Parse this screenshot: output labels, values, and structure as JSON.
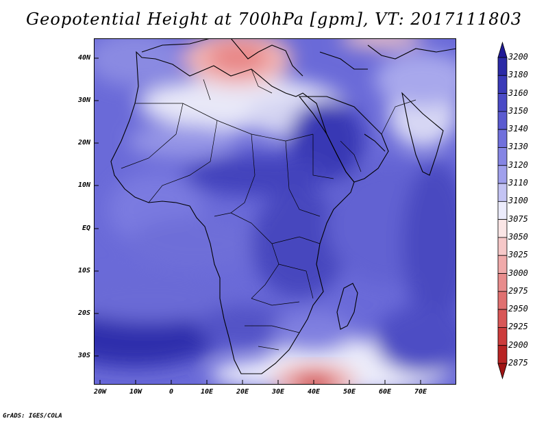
{
  "title": "Geopotential Height at 700hPa [gpm], VT: 2017111803",
  "credit": "GrADS: IGES/COLA",
  "map": {
    "lat_labels": [
      "40N",
      "30N",
      "20N",
      "10N",
      "EQ",
      "10S",
      "20S",
      "30S"
    ],
    "lon_labels": [
      "20W",
      "10W",
      "0",
      "10E",
      "20E",
      "30E",
      "40E",
      "50E",
      "60E",
      "70E"
    ],
    "lat_range": [
      -36,
      45
    ],
    "lon_range": [
      -23,
      79
    ]
  },
  "colorbar": {
    "levels": [
      "3200",
      "3180",
      "3160",
      "3150",
      "3140",
      "3130",
      "3120",
      "3110",
      "3100",
      "3075",
      "3050",
      "3025",
      "3000",
      "2975",
      "2950",
      "2925",
      "2900",
      "2875"
    ],
    "colors": [
      "#201a96",
      "#2b2aa6",
      "#3a3ab8",
      "#4a4ac6",
      "#5a5ad0",
      "#7070dc",
      "#8585e4",
      "#a0a0ec",
      "#c4c4f4",
      "#ececfc",
      "#fae6e6",
      "#f6c8c8",
      "#f0aaaa",
      "#e88c8c",
      "#e07070",
      "#d85656",
      "#cc3c3c",
      "#b82424",
      "#a01414"
    ]
  }
}
